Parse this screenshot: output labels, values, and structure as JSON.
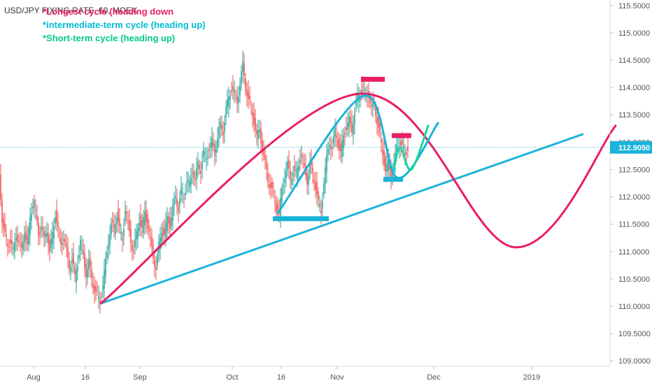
{
  "chart_title": "USD/JPY FIXING RATE, 60, MOEX",
  "annotations": [
    {
      "text": "*Longest cycle (heading down",
      "color": "#e91e63"
    },
    {
      "text": "*intermediate-term cycle (heading up)",
      "color": "#00bcd4"
    },
    {
      "text": "*Short-term cycle (heading up)",
      "color": "#00c98d"
    }
  ],
  "colors": {
    "up": "#26a69a",
    "down": "#ef5350",
    "longest_cycle": "#e91e63",
    "intermediate_cycle": "#1ab3d9",
    "short_cycle": "#1ed49a",
    "trendline": "#1ab3d9",
    "price_line": "#1ab3d9",
    "price_badge": "#1ab3d9",
    "axis_text": "#555555",
    "marker_top": "#e91e63",
    "marker_bottom": "#1ab3d9"
  },
  "chart_data": {
    "type": "line",
    "title": "USD/JPY FIXING RATE, 60, MOEX",
    "ylim": [
      108.9,
      115.6
    ],
    "y_ticks": [
      109.0,
      109.5,
      110.0,
      110.5,
      111.0,
      111.5,
      112.0,
      112.5,
      113.0,
      113.5,
      114.0,
      114.5,
      115.0,
      115.5
    ],
    "y_tick_labels": [
      "109.0000",
      "109.5000",
      "110.0000",
      "110.5000",
      "111.0000",
      "111.5000",
      "112.0000",
      "112.5000",
      "113.0000",
      "113.5000",
      "114.0000",
      "114.5000",
      "115.0000",
      "115.5000"
    ],
    "x_tick_labels": [
      "Aug",
      "16",
      "Sep",
      "Oct",
      "16",
      "Nov",
      "Dec",
      "2019"
    ],
    "last_price": 112.905,
    "last_price_label": "112.9050",
    "price_series": [
      {
        "t": 0,
        "y": 112.4
      },
      {
        "t": 4,
        "y": 111.6
      },
      {
        "t": 8,
        "y": 111.3
      },
      {
        "t": 12,
        "y": 111.1
      },
      {
        "t": 16,
        "y": 111.2
      },
      {
        "t": 20,
        "y": 111.0
      },
      {
        "t": 24,
        "y": 111.3
      },
      {
        "t": 28,
        "y": 111.2
      },
      {
        "t": 32,
        "y": 111.0
      },
      {
        "t": 36,
        "y": 111.4
      },
      {
        "t": 40,
        "y": 111.1
      },
      {
        "t": 44,
        "y": 111.6
      },
      {
        "t": 48,
        "y": 111.9
      },
      {
        "t": 52,
        "y": 111.7
      },
      {
        "t": 56,
        "y": 111.3
      },
      {
        "t": 60,
        "y": 111.5
      },
      {
        "t": 64,
        "y": 111.2
      },
      {
        "t": 68,
        "y": 111.4
      },
      {
        "t": 72,
        "y": 111.0
      },
      {
        "t": 76,
        "y": 111.3
      },
      {
        "t": 80,
        "y": 111.7
      },
      {
        "t": 84,
        "y": 111.4
      },
      {
        "t": 88,
        "y": 111.1
      },
      {
        "t": 92,
        "y": 111.3
      },
      {
        "t": 96,
        "y": 111.0
      },
      {
        "t": 100,
        "y": 110.7
      },
      {
        "t": 104,
        "y": 110.9
      },
      {
        "t": 108,
        "y": 110.5
      },
      {
        "t": 112,
        "y": 110.8
      },
      {
        "t": 116,
        "y": 111.2
      },
      {
        "t": 120,
        "y": 110.9
      },
      {
        "t": 124,
        "y": 110.6
      },
      {
        "t": 128,
        "y": 110.8
      },
      {
        "t": 132,
        "y": 110.5
      },
      {
        "t": 136,
        "y": 110.3
      },
      {
        "t": 140,
        "y": 110.2
      },
      {
        "t": 144,
        "y": 110.1
      },
      {
        "t": 148,
        "y": 110.4
      },
      {
        "t": 152,
        "y": 110.8
      },
      {
        "t": 156,
        "y": 111.2
      },
      {
        "t": 160,
        "y": 111.5
      },
      {
        "t": 164,
        "y": 111.4
      },
      {
        "t": 168,
        "y": 111.7
      },
      {
        "t": 172,
        "y": 111.4
      },
      {
        "t": 176,
        "y": 111.2
      },
      {
        "t": 180,
        "y": 111.8
      },
      {
        "t": 184,
        "y": 111.5
      },
      {
        "t": 188,
        "y": 111.2
      },
      {
        "t": 192,
        "y": 111.0
      },
      {
        "t": 196,
        "y": 111.3
      },
      {
        "t": 200,
        "y": 111.6
      },
      {
        "t": 204,
        "y": 111.4
      },
      {
        "t": 208,
        "y": 111.7
      },
      {
        "t": 212,
        "y": 111.5
      },
      {
        "t": 216,
        "y": 111.2
      },
      {
        "t": 220,
        "y": 110.9
      },
      {
        "t": 224,
        "y": 110.7
      },
      {
        "t": 228,
        "y": 111.1
      },
      {
        "t": 232,
        "y": 111.4
      },
      {
        "t": 236,
        "y": 111.3
      },
      {
        "t": 240,
        "y": 111.6
      },
      {
        "t": 244,
        "y": 111.5
      },
      {
        "t": 248,
        "y": 111.8
      },
      {
        "t": 252,
        "y": 112.0
      },
      {
        "t": 256,
        "y": 111.8
      },
      {
        "t": 260,
        "y": 112.1
      },
      {
        "t": 264,
        "y": 112.0
      },
      {
        "t": 268,
        "y": 112.3
      },
      {
        "t": 272,
        "y": 112.2
      },
      {
        "t": 276,
        "y": 112.5
      },
      {
        "t": 280,
        "y": 112.3
      },
      {
        "t": 284,
        "y": 112.6
      },
      {
        "t": 288,
        "y": 112.5
      },
      {
        "t": 292,
        "y": 112.8
      },
      {
        "t": 296,
        "y": 112.7
      },
      {
        "t": 300,
        "y": 112.9
      },
      {
        "t": 304,
        "y": 113.0
      },
      {
        "t": 308,
        "y": 112.8
      },
      {
        "t": 312,
        "y": 113.1
      },
      {
        "t": 316,
        "y": 113.3
      },
      {
        "t": 320,
        "y": 113.2
      },
      {
        "t": 324,
        "y": 113.6
      },
      {
        "t": 328,
        "y": 113.8
      },
      {
        "t": 332,
        "y": 114.0
      },
      {
        "t": 336,
        "y": 113.9
      },
      {
        "t": 340,
        "y": 113.7
      },
      {
        "t": 344,
        "y": 114.1
      },
      {
        "t": 348,
        "y": 114.4
      },
      {
        "t": 352,
        "y": 114.0
      },
      {
        "t": 356,
        "y": 113.8
      },
      {
        "t": 360,
        "y": 113.6
      },
      {
        "t": 364,
        "y": 113.4
      },
      {
        "t": 368,
        "y": 113.1
      },
      {
        "t": 372,
        "y": 113.2
      },
      {
        "t": 376,
        "y": 112.9
      },
      {
        "t": 380,
        "y": 112.6
      },
      {
        "t": 384,
        "y": 112.3
      },
      {
        "t": 388,
        "y": 112.2
      },
      {
        "t": 392,
        "y": 112.0
      },
      {
        "t": 396,
        "y": 111.8
      },
      {
        "t": 400,
        "y": 111.7
      },
      {
        "t": 404,
        "y": 112.1
      },
      {
        "t": 408,
        "y": 112.4
      },
      {
        "t": 412,
        "y": 112.6
      },
      {
        "t": 416,
        "y": 112.3
      },
      {
        "t": 420,
        "y": 112.5
      },
      {
        "t": 424,
        "y": 112.4
      },
      {
        "t": 428,
        "y": 112.6
      },
      {
        "t": 432,
        "y": 112.8
      },
      {
        "t": 436,
        "y": 112.5
      },
      {
        "t": 440,
        "y": 112.3
      },
      {
        "t": 444,
        "y": 112.6
      },
      {
        "t": 448,
        "y": 112.4
      },
      {
        "t": 452,
        "y": 112.2
      },
      {
        "t": 456,
        "y": 111.9
      },
      {
        "t": 460,
        "y": 111.7
      },
      {
        "t": 464,
        "y": 112.3
      },
      {
        "t": 468,
        "y": 112.7
      },
      {
        "t": 472,
        "y": 113.0
      },
      {
        "t": 476,
        "y": 112.9
      },
      {
        "t": 480,
        "y": 113.2
      },
      {
        "t": 484,
        "y": 113.0
      },
      {
        "t": 488,
        "y": 112.8
      },
      {
        "t": 492,
        "y": 113.1
      },
      {
        "t": 496,
        "y": 113.3
      },
      {
        "t": 500,
        "y": 113.4
      },
      {
        "t": 504,
        "y": 113.2
      },
      {
        "t": 508,
        "y": 113.6
      },
      {
        "t": 512,
        "y": 113.8
      },
      {
        "t": 516,
        "y": 113.9
      },
      {
        "t": 520,
        "y": 114.0
      },
      {
        "t": 524,
        "y": 113.8
      },
      {
        "t": 528,
        "y": 113.9
      },
      {
        "t": 532,
        "y": 113.6
      },
      {
        "t": 536,
        "y": 113.7
      },
      {
        "t": 540,
        "y": 113.4
      },
      {
        "t": 544,
        "y": 113.1
      },
      {
        "t": 548,
        "y": 112.8
      },
      {
        "t": 552,
        "y": 112.5
      },
      {
        "t": 556,
        "y": 112.6
      },
      {
        "t": 560,
        "y": 112.4
      },
      {
        "t": 564,
        "y": 112.6
      },
      {
        "t": 568,
        "y": 112.9
      },
      {
        "t": 572,
        "y": 113.0
      },
      {
        "t": 576,
        "y": 112.9
      },
      {
        "t": 580,
        "y": 112.8
      },
      {
        "t": 584,
        "y": 112.9
      }
    ],
    "drawn_lines": [
      {
        "name": "trendline",
        "points": [
          {
            "t": 144,
            "y": 110.05
          },
          {
            "t": 834,
            "y": 113.15
          }
        ]
      },
      {
        "name": "longest_cycle",
        "points": [
          {
            "t": 144,
            "y": 110.05
          },
          {
            "t": 510,
            "y": 113.88
          },
          {
            "t": 734,
            "y": 111.08
          },
          {
            "t": 880,
            "y": 113.3
          }
        ]
      },
      {
        "name": "intermediate_cycle",
        "points": [
          {
            "t": 397,
            "y": 111.7
          },
          {
            "t": 520,
            "y": 113.85
          },
          {
            "t": 568,
            "y": 112.35
          },
          {
            "t": 626,
            "y": 113.35
          }
        ]
      },
      {
        "name": "short_cycle",
        "points": [
          {
            "t": 563,
            "y": 112.5
          },
          {
            "t": 572,
            "y": 112.9
          },
          {
            "t": 588,
            "y": 112.5
          },
          {
            "t": 612,
            "y": 113.3
          }
        ]
      }
    ],
    "markers": [
      {
        "kind": "top",
        "t0": 516,
        "t1": 550,
        "y": 114.15
      },
      {
        "kind": "top",
        "t0": 560,
        "t1": 588,
        "y": 113.12
      },
      {
        "kind": "bottom",
        "t0": 390,
        "t1": 470,
        "y": 111.6
      },
      {
        "kind": "bottom",
        "t0": 548,
        "t1": 576,
        "y": 112.32
      }
    ]
  }
}
